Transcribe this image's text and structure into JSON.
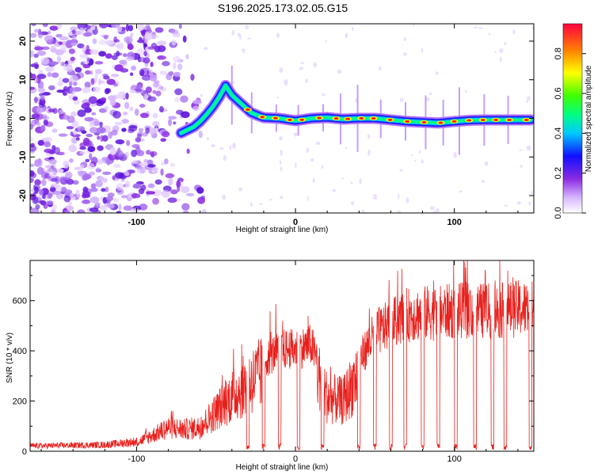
{
  "title": "S196.2025.173.02.05.G15",
  "colors": {
    "snr_line": "#e8201c",
    "track_cool": "#2020ff",
    "track_hot": "#ff2020",
    "scatter": "#8a2be2"
  },
  "chart_data": [
    {
      "type": "heatmap",
      "xlabel": "Height of straight line (km)",
      "ylabel": "Frequency (Hz)",
      "xlim": [
        -167,
        150
      ],
      "ylim": [
        -24.5,
        24.5
      ],
      "x_ticks": [
        -100,
        0,
        100
      ],
      "y_ticks": [
        -20,
        -10,
        0,
        10,
        20
      ],
      "colorbar": {
        "label": "Normalized spectral amplitude",
        "range": [
          0.0,
          0.95
        ],
        "ticks": [
          "0.0",
          "0.2",
          "0.4",
          "0.6",
          "0.8"
        ],
        "tick_values": [
          0,
          0.2,
          0.4,
          0.6,
          0.8
        ]
      },
      "ridge": {
        "x": [
          -72,
          -68,
          -64,
          -60,
          -56,
          -52,
          -48,
          -44,
          -40,
          -36,
          -32,
          -28,
          -24,
          -20,
          -10,
          0,
          10,
          20,
          30,
          40,
          50,
          60,
          70,
          80,
          90,
          100,
          110,
          120,
          130,
          140,
          148
        ],
        "y": [
          -3.8,
          -3.0,
          -2.2,
          -0.8,
          1.0,
          3.0,
          5.5,
          8.5,
          6.0,
          4.5,
          3.0,
          1.5,
          0.8,
          0.2,
          0.0,
          -0.6,
          0.0,
          0.2,
          -0.2,
          0.0,
          0.0,
          -0.4,
          -0.8,
          -1.0,
          -1.2,
          -0.8,
          -0.5,
          -0.4,
          -0.4,
          -0.4,
          -0.4
        ]
      }
    },
    {
      "type": "line",
      "xlabel": "Height of straight line (km)",
      "ylabel": "SNR (10 * v/v)",
      "xlim": [
        -167,
        150
      ],
      "ylim": [
        0,
        760
      ],
      "x_ticks": [
        -100,
        0,
        100
      ],
      "y_ticks": [
        0,
        200,
        400,
        600
      ],
      "envelope": {
        "x": [
          -167,
          -120,
          -100,
          -90,
          -80,
          -70,
          -60,
          -50,
          -40,
          -30,
          -20,
          -10,
          0,
          10,
          20,
          30,
          40,
          50,
          60,
          70,
          80,
          90,
          100,
          110,
          120,
          130,
          140,
          150
        ],
        "y": [
          25,
          30,
          45,
          80,
          120,
          110,
          120,
          200,
          280,
          340,
          400,
          450,
          450,
          470,
          270,
          250,
          400,
          520,
          560,
          600,
          610,
          610,
          620,
          620,
          620,
          620,
          630,
          630
        ]
      },
      "dropouts_x": [
        -30,
        -20,
        -10,
        2,
        17,
        40,
        50,
        60,
        69,
        80,
        90,
        101,
        113,
        124,
        132,
        148
      ]
    }
  ]
}
